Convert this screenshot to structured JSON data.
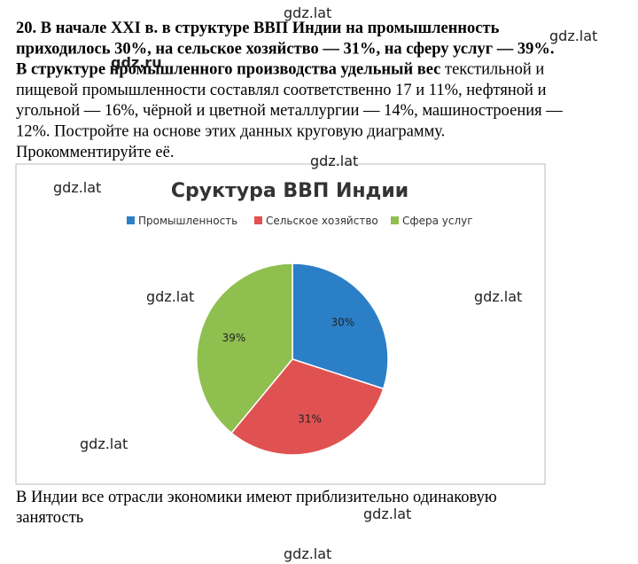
{
  "problem": {
    "lines": [
      [
        {
          "text": "20. В начале XXI в. в структуре ВВП Индии на промышленность",
          "bold": true
        }
      ],
      [
        {
          "text": "приходилось 30%, на сельское хозяйство — 31%, на сферу услуг — 39%.",
          "bold": true
        }
      ],
      [
        {
          "text": "В структуре промышленного производства удельный вес",
          "bold": true
        },
        {
          "text": " текстильной и",
          "bold": false
        }
      ],
      [
        {
          "text": "пищевой промышленности составлял соответственно 17 и 11%, нефтяной и",
          "bold": false
        }
      ],
      [
        {
          "text": "угольной — 16%, чёрной и цветной металлургии — 14%, машиностроения —",
          "bold": false
        }
      ],
      [
        {
          "text": "12%. Постройте на основе этих данных круговую диаграмму.",
          "bold": false
        }
      ],
      [
        {
          "text": "Прокомментируйте её.",
          "bold": false
        }
      ]
    ]
  },
  "chart_data": {
    "type": "pie",
    "title": "Сруктура ВВП Индии",
    "categories": [
      "Промышленность",
      "Сельское хозяйство",
      "Сфера услуг"
    ],
    "values": [
      30,
      31,
      39
    ],
    "value_labels": [
      "30%",
      "31%",
      "39%"
    ],
    "colors": [
      "#2b7fc6",
      "#e05252",
      "#8fbf4f"
    ],
    "legend": "top"
  },
  "answer": {
    "lines": [
      "В Индии все отрасли экономики имеют приблизительно одинаковую",
      "занятость"
    ]
  },
  "watermarks": [
    "gdz.lat",
    "gdz.lat",
    "gdz.ru",
    "gdz.lat",
    "gdz.lat",
    "gdz.lat",
    "gdz.lat",
    "gdz.lat",
    "gdz.lat",
    "gdz.lat"
  ]
}
